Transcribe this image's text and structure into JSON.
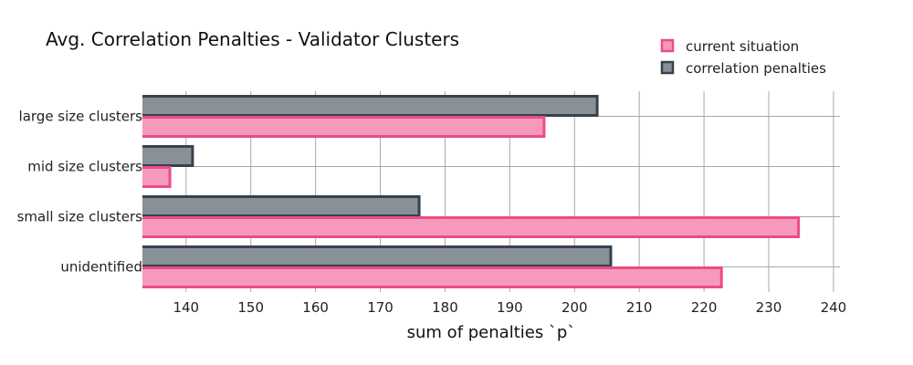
{
  "chart_data": {
    "type": "bar",
    "orientation": "horizontal",
    "title": "Avg. Correlation Penalties - Validator Clusters",
    "xlabel": "sum of penalties `p`",
    "ylabel": "",
    "categories": [
      "large size clusters",
      "mid size clusters",
      "small size clusters",
      "unidentified"
    ],
    "series": [
      {
        "name": "correlation penalties",
        "values": [
          203.5,
          141,
          176,
          205.6
        ],
        "fill": "#8a9097",
        "stroke": "#36424e"
      },
      {
        "name": "current situation",
        "values": [
          195.3,
          137.5,
          234.6,
          222.7
        ],
        "fill": "#f799ba",
        "stroke": "#ea4c89"
      }
    ],
    "xlim": [
      133.4,
      241
    ],
    "xticks": [
      140,
      150,
      160,
      170,
      180,
      190,
      200,
      210,
      220,
      230,
      240
    ],
    "grid": true,
    "legend_position": "top-right",
    "legend_order": [
      "current situation",
      "correlation penalties"
    ]
  }
}
